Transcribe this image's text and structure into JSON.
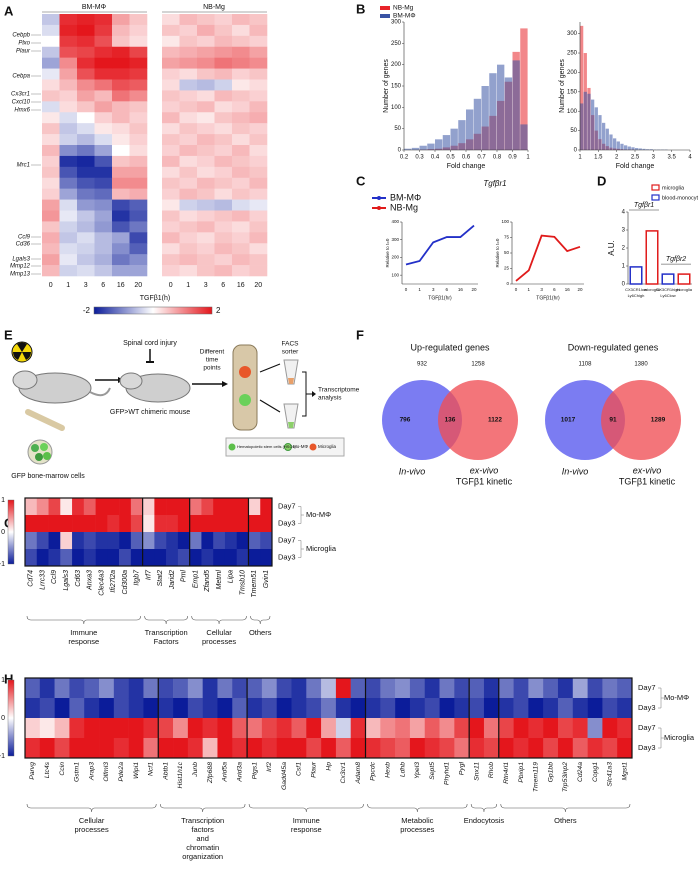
{
  "heatmap_colors": [
    "#0b1c9a",
    "#ffffff",
    "#e4161c"
  ],
  "A": {
    "letter": "A",
    "groups": [
      "BM-MΦ",
      "NB-Mg"
    ],
    "time_points": [
      "0",
      "1",
      "3",
      "6",
      "16",
      "20"
    ],
    "x_label": "TGFβ1(h)",
    "colorbar_ticks": [
      -2,
      2
    ],
    "genes": [
      "Cebpb",
      "Plxo",
      "Plaur",
      "Cebpa",
      "Cx3cr1",
      "Cxcl10",
      "Hmx6",
      "Mrc1",
      "Ccl9",
      "Cd36",
      "Lgals3",
      "Mmp12",
      "Mmp13"
    ],
    "bm_values": [
      [
        -0.5,
        1.8,
        1.9,
        1.8,
        0.8,
        0.5
      ],
      [
        -0.3,
        1.9,
        2,
        1.7,
        0.6,
        0.4
      ],
      [
        0,
        1.7,
        1.8,
        1.5,
        0.5,
        0.3
      ],
      [
        -0.5,
        1.5,
        1.6,
        1.8,
        1.9,
        1.6
      ],
      [
        -0.8,
        1,
        1.8,
        2,
        2,
        1.9
      ],
      [
        -0.2,
        0.8,
        1.5,
        1.8,
        1.8,
        1.7
      ],
      [
        0.3,
        0.6,
        1,
        1.2,
        1.5,
        1.4
      ],
      [
        0.5,
        0.4,
        0.8,
        0.6,
        1.2,
        1
      ],
      [
        -0.3,
        0.3,
        0.5,
        0.8,
        0.6,
        0.5
      ],
      [
        0.2,
        -0.3,
        0,
        0.4,
        0.6,
        0.4
      ],
      [
        0.5,
        -0.5,
        -0.3,
        0.2,
        0.3,
        0.5
      ],
      [
        0.3,
        -0.4,
        -0.6,
        -0.3,
        0.2,
        0.4
      ],
      [
        0.6,
        -1,
        -1.2,
        -0.8,
        0,
        0.3
      ],
      [
        0.4,
        -1.8,
        -1.9,
        -1.5,
        0.5,
        0.6
      ],
      [
        0.5,
        -1.5,
        -1.8,
        -1.8,
        0.8,
        0.8
      ],
      [
        0.3,
        -1.2,
        -1.5,
        -1.6,
        1,
        1
      ],
      [
        0.4,
        -0.8,
        -1.2,
        -1.3,
        0.6,
        0.7
      ],
      [
        0.8,
        -0.3,
        -0.9,
        -1,
        -1.6,
        -1.4
      ],
      [
        0.9,
        -0.2,
        -0.5,
        -0.8,
        -1.8,
        -1.5
      ],
      [
        0.5,
        -0.4,
        -0.6,
        -0.9,
        -1.5,
        -1.2
      ],
      [
        0.7,
        -0.5,
        -0.3,
        -0.6,
        -0.8,
        -1.6
      ],
      [
        0.6,
        -0.3,
        -0.4,
        -0.6,
        -1,
        -1.4
      ],
      [
        0.8,
        -0.2,
        -0.5,
        -0.7,
        -1.2,
        -1
      ],
      [
        0.6,
        -0.4,
        -0.3,
        -0.5,
        -0.8,
        -0.8
      ]
    ],
    "nb_values": [
      [
        0.3,
        0.6,
        0.5,
        0.4,
        0.6,
        0.5
      ],
      [
        0.5,
        0.4,
        0.7,
        0.5,
        0.3,
        0.6
      ],
      [
        0.2,
        0.5,
        0.4,
        0.6,
        0.5,
        0.4
      ],
      [
        0.6,
        0.7,
        0.8,
        0.9,
        1,
        0.8
      ],
      [
        0.8,
        0.9,
        1,
        1.2,
        1.1,
        1
      ],
      [
        0.4,
        0.3,
        0.5,
        0.6,
        0.4,
        0.5
      ],
      [
        0.3,
        -0.5,
        -0.6,
        -0.4,
        0.2,
        0.3
      ],
      [
        0.5,
        0.4,
        0.3,
        0.6,
        0.5,
        0.4
      ],
      [
        0.4,
        0.5,
        0.6,
        0.3,
        0.4,
        0.6
      ],
      [
        0.6,
        0.3,
        0.2,
        0.5,
        0.6,
        0.7
      ],
      [
        0.3,
        0.5,
        0.4,
        0.3,
        0.5,
        0.4
      ],
      [
        0.5,
        0.4,
        0.6,
        0.5,
        0.3,
        0.5
      ],
      [
        0.4,
        0.6,
        0.5,
        0.4,
        0.6,
        0.3
      ],
      [
        0.6,
        0.3,
        0.4,
        0.6,
        0.5,
        0.4
      ],
      [
        0.3,
        0.5,
        0.3,
        0.4,
        0.6,
        0.5
      ],
      [
        0.5,
        0.4,
        0.6,
        0.5,
        0.4,
        0.6
      ],
      [
        0.4,
        0.6,
        0.5,
        0.3,
        0.5,
        0.4
      ],
      [
        0.2,
        -0.4,
        -0.5,
        -0.6,
        -0.3,
        -0.2
      ],
      [
        0.5,
        0.3,
        0.4,
        0.5,
        0.6,
        0.4
      ],
      [
        0.4,
        0.5,
        0.6,
        0.4,
        0.3,
        0.5
      ],
      [
        0.6,
        0.4,
        0.3,
        0.5,
        0.4,
        0.6
      ],
      [
        0.3,
        0.5,
        0.4,
        0.6,
        0.5,
        0.3
      ],
      [
        0.5,
        0.6,
        0.5,
        0.4,
        0.6,
        0.5
      ],
      [
        0.4,
        0.3,
        0.5,
        0.6,
        0.4,
        0.5
      ]
    ]
  },
  "B": {
    "letter": "B",
    "y_label": "Number of genes",
    "x_label": "Fold change",
    "series": [
      {
        "name": "NB-Mg",
        "color": "#e8242a"
      },
      {
        "name": "BM-MΦ",
        "color": "#3953a4"
      }
    ],
    "histograms": [
      {
        "xlim": [
          0.2,
          1
        ],
        "ylim": [
          0,
          300
        ],
        "xticks": [
          0.2,
          0.3,
          0.4,
          0.5,
          0.6,
          0.7,
          0.8,
          0.9,
          1
        ],
        "yticks": [
          0,
          50,
          100,
          150,
          200,
          250,
          300
        ],
        "bins": [
          0.2,
          0.25,
          0.3,
          0.35,
          0.4,
          0.45,
          0.5,
          0.55,
          0.6,
          0.65,
          0.7,
          0.75,
          0.8,
          0.85,
          0.9,
          0.95,
          1
        ],
        "counts": [
          [
            0,
            0,
            1,
            2,
            3,
            6,
            10,
            16,
            25,
            38,
            55,
            80,
            115,
            160,
            230,
            285
          ],
          [
            3,
            5,
            10,
            15,
            25,
            35,
            50,
            70,
            95,
            120,
            150,
            180,
            200,
            170,
            210,
            60
          ]
        ]
      },
      {
        "xlim": [
          1,
          4
        ],
        "ylim": [
          0,
          330
        ],
        "xticks": [
          1,
          1.5,
          2,
          2.5,
          3,
          3.5,
          4
        ],
        "yticks": [
          0,
          50,
          100,
          150,
          200,
          250,
          300
        ],
        "bins": [
          1,
          1.1,
          1.2,
          1.3,
          1.4,
          1.5,
          1.6,
          1.7,
          1.8,
          1.9,
          2,
          2.1,
          2.2,
          2.3,
          2.4,
          2.5,
          2.6,
          2.7,
          2.8,
          2.9,
          3,
          3.1,
          3.2,
          3.3,
          3.4,
          3.5,
          3.6,
          3.7,
          3.8,
          3.9,
          4
        ],
        "counts": [
          [
            320,
            250,
            160,
            90,
            50,
            28,
            16,
            10,
            6,
            4,
            3,
            2,
            1,
            1,
            1,
            0,
            0,
            0,
            0,
            0,
            0,
            0,
            0,
            0,
            0,
            0,
            0,
            0,
            0,
            0
          ],
          [
            120,
            150,
            145,
            130,
            110,
            90,
            70,
            55,
            40,
            30,
            22,
            16,
            12,
            9,
            7,
            5,
            4,
            3,
            2,
            2,
            1,
            1,
            1,
            1,
            0,
            0,
            0,
            0,
            0,
            0
          ]
        ]
      }
    ]
  },
  "C": {
    "letter": "C",
    "title": "Tgfβr1",
    "y_label": "Relative to t=0",
    "x_label": "TGFβ1(hr)",
    "categories": [
      "0",
      "1",
      "3",
      "6",
      "16",
      "20"
    ],
    "series": [
      {
        "name": "BM-MΦ",
        "color": "#2330c8",
        "values": [
          160,
          180,
          285,
          315,
          315,
          380
        ],
        "ylim": [
          50,
          400
        ],
        "yticks": [
          100,
          200,
          300,
          400
        ]
      },
      {
        "name": "NB-Mg",
        "color": "#e01b1b",
        "values": [
          5,
          22,
          78,
          76,
          53,
          60
        ],
        "ylim": [
          0,
          100
        ],
        "yticks": [
          0,
          25,
          50,
          75,
          100
        ]
      }
    ]
  },
  "D": {
    "letter": "D",
    "y_label": "A.U.",
    "ylim": [
      0,
      4
    ],
    "yticks": [
      0,
      1,
      2,
      3,
      4
    ],
    "legend": [
      {
        "name": "microglia",
        "color": "#e01b1b"
      },
      {
        "name": "blood-monocytes",
        "color": "#2330c8"
      }
    ],
    "genes": [
      "Tgfβr1",
      "Tgfβr2"
    ],
    "categories": [
      [
        "CX3CR1low",
        "Ly6Chigh"
      ],
      [
        "microglia"
      ],
      [
        "CX3CR1high",
        "Ly6Clow"
      ],
      [
        "microglia"
      ]
    ],
    "values": [
      0.95,
      2.95,
      0.55,
      0.55
    ],
    "colors": [
      "#2330c8",
      "#e01b1b",
      "#2330c8",
      "#e01b1b"
    ]
  },
  "E": {
    "letter": "E",
    "injury": "Spinal cord injury",
    "time_points": [
      "Different",
      "time",
      "points"
    ],
    "sorter": [
      "FACS",
      "sorter"
    ],
    "analysis": [
      "Transcriptome",
      "analysis"
    ],
    "chimera": "GFP>WT chimeric mouse",
    "donor": "GFP bone-marrow cells",
    "legend": [
      "Hematopoietic stem cells (HSCs)",
      "Mo-MΦ",
      "Microglia"
    ]
  },
  "F": {
    "letter": "F",
    "venns": [
      {
        "title": "Up-regulated genes",
        "left_total": "932",
        "right_total": "1258",
        "left_only": "796",
        "overlap": "136",
        "right_only": "1122",
        "left_label": "In-vivo",
        "right_label": "ex-vivo",
        "right_sublabel": "TGFβ1 kinetic"
      },
      {
        "title": "Down-regulated genes",
        "left_total": "1108",
        "right_total": "1380",
        "left_only": "1017",
        "overlap": "91",
        "right_only": "1289",
        "left_label": "In-vivo",
        "right_label": "ex-vivo",
        "right_sublabel": "TGFβ1 kinetic"
      }
    ]
  },
  "G": {
    "letter": "G",
    "colorbar_ticks": [
      1,
      0,
      -1
    ],
    "row_labels": [
      "Day7",
      "Day3",
      "Day7",
      "Day3"
    ],
    "conditions": [
      "Mo-MΦ",
      "Microglia"
    ],
    "groups": [
      {
        "label": [
          "Immune",
          "response"
        ],
        "genes": [
          "Cd74",
          "Lrrc33",
          "Ccl9",
          "Lgals3",
          "Cd63",
          "Anxa3",
          "Clec4a3",
          "Ifi27l2a",
          "Cd300a",
          "Itgb7"
        ]
      },
      {
        "label": [
          "Transcription",
          "Factors"
        ],
        "genes": [
          "Irf7",
          "Stat2",
          "Jarid2",
          "Pml"
        ]
      },
      {
        "label": [
          "Cellular",
          "processes"
        ],
        "genes": [
          "Emp1",
          "Zfand5",
          "Metrnl",
          "Lipa",
          "Tmsb10"
        ]
      },
      {
        "label": [
          "Others"
        ],
        "genes": [
          "Tmem51",
          "Gvin1"
        ]
      }
    ],
    "values": [
      [
        0.3,
        0.5,
        0.8,
        0.1,
        0.9,
        0.7,
        1,
        1,
        1,
        0.6,
        0.2,
        1,
        1,
        1,
        0.6,
        0.8,
        1,
        1,
        1,
        0.2,
        1
      ],
      [
        1,
        1,
        1,
        1,
        1,
        1,
        1,
        0.9,
        1,
        0.8,
        0.1,
        0.9,
        0.9,
        1,
        1,
        1,
        1,
        1,
        1,
        1,
        1
      ],
      [
        -0.6,
        -0.8,
        -1,
        0.2,
        -0.9,
        -0.8,
        -0.9,
        -0.9,
        -1,
        -0.7,
        -0.5,
        -0.8,
        -0.9,
        -1,
        -0.6,
        -1,
        -0.8,
        -0.9,
        -1,
        -0.7,
        -0.8
      ],
      [
        -0.8,
        -1,
        -0.9,
        -0.7,
        -1,
        -0.9,
        -1,
        -1,
        -0.8,
        -1,
        -1,
        -1,
        -0.9,
        -0.8,
        -1,
        -0.9,
        -1,
        -1,
        -0.9,
        -1,
        -1
      ]
    ]
  },
  "H": {
    "letter": "H",
    "colorbar_ticks": [
      1,
      0,
      -1
    ],
    "row_labels": [
      "Day7",
      "Day3",
      "Day7",
      "Day3"
    ],
    "conditions": [
      "Mo-MΦ",
      "Microglia"
    ],
    "groups": [
      {
        "label": [
          "Cellular",
          "processes"
        ],
        "genes": [
          "Parvg",
          "Ltc4s",
          "Ccin",
          "Gstm1",
          "Arap3",
          "Olfml3",
          "Pde2a",
          "Wipi1",
          "Ncf1"
        ]
      },
      {
        "label": [
          "Transcription",
          "factors",
          "and",
          "chromatin",
          "organization"
        ],
        "genes": [
          "Abtb1",
          "Hist1h1c",
          "Junb",
          "Zfp688",
          "Arid5a",
          "Arid3a"
        ]
      },
      {
        "label": [
          "Immune",
          "response"
        ],
        "genes": [
          "Ptgs1",
          "Irf2",
          "Gadd45a",
          "Csf1",
          "Plaur",
          "Hp",
          "Cx3cr1",
          "Adam8"
        ]
      },
      {
        "label": [
          "Metabolic",
          "processes"
        ],
        "genes": [
          "Ppcdc",
          "Hexb",
          "Ldhb",
          "Ypel3",
          "Sept5",
          "Phyhd1",
          "Pygl"
        ]
      },
      {
        "label": [
          "Endocytosis"
        ],
        "genes": [
          "Snx11",
          "Rhob"
        ]
      },
      {
        "label": [
          "Others"
        ],
        "genes": [
          "Rtn4rl1",
          "Pbxip1",
          "Tmem119",
          "Gp1bb",
          "Trp53inp2",
          "Cd24a",
          "Copg1",
          "Slc41a3",
          "Mgst1"
        ]
      }
    ],
    "values": [
      [
        -0.7,
        -0.9,
        -0.6,
        -0.8,
        -0.7,
        -0.5,
        -0.8,
        -0.9,
        -0.6,
        -0.8,
        -0.7,
        -0.5,
        -0.9,
        -0.6,
        -0.8,
        -0.7,
        -0.5,
        -0.8,
        -0.9,
        -0.6,
        -0.3,
        1,
        -0.7,
        -0.8,
        -0.6,
        -0.5,
        -0.7,
        -0.9,
        -0.6,
        -0.8,
        -0.7,
        -0.9,
        -0.6,
        -0.8,
        -0.5,
        -0.7,
        -0.9,
        -0.4,
        -0.8,
        -0.6,
        -0.7
      ],
      [
        -0.9,
        -0.8,
        -1,
        -0.7,
        -0.9,
        -1,
        -0.8,
        -0.9,
        -1,
        -0.9,
        -1,
        -0.8,
        -0.9,
        -1,
        -0.7,
        -0.9,
        -0.8,
        -1,
        -0.9,
        -0.8,
        -0.6,
        -0.9,
        -1,
        -0.9,
        -0.8,
        -1,
        -0.9,
        -0.8,
        -1,
        -0.9,
        -0.8,
        -1,
        -0.9,
        -0.8,
        -1,
        -0.9,
        -0.7,
        -0.9,
        -1,
        -0.8,
        -0.9
      ],
      [
        0.2,
        0.1,
        0.3,
        0.9,
        1,
        1,
        1,
        1,
        0.9,
        0.8,
        0.5,
        1,
        0.9,
        1,
        0.7,
        0.6,
        0.8,
        0.9,
        0.7,
        1,
        0.4,
        -0.2,
        0.9,
        0.3,
        0.5,
        0.6,
        0.4,
        0.7,
        0.5,
        0.8,
        1,
        0.6,
        0.8,
        1,
        0.9,
        1,
        0.8,
        0.9,
        -0.5,
        1,
        0.9
      ],
      [
        0.9,
        1,
        0.8,
        1,
        1,
        1,
        0.9,
        1,
        0.6,
        1,
        1,
        0.9,
        0.3,
        1,
        0.9,
        1,
        0.9,
        1,
        1,
        0.8,
        1,
        0.7,
        1,
        0.9,
        0.8,
        0.7,
        1,
        0.9,
        0.8,
        0.6,
        0.9,
        0.8,
        1,
        0.9,
        1,
        0.8,
        1,
        0.7,
        0.9,
        0.8,
        1
      ]
    ]
  }
}
